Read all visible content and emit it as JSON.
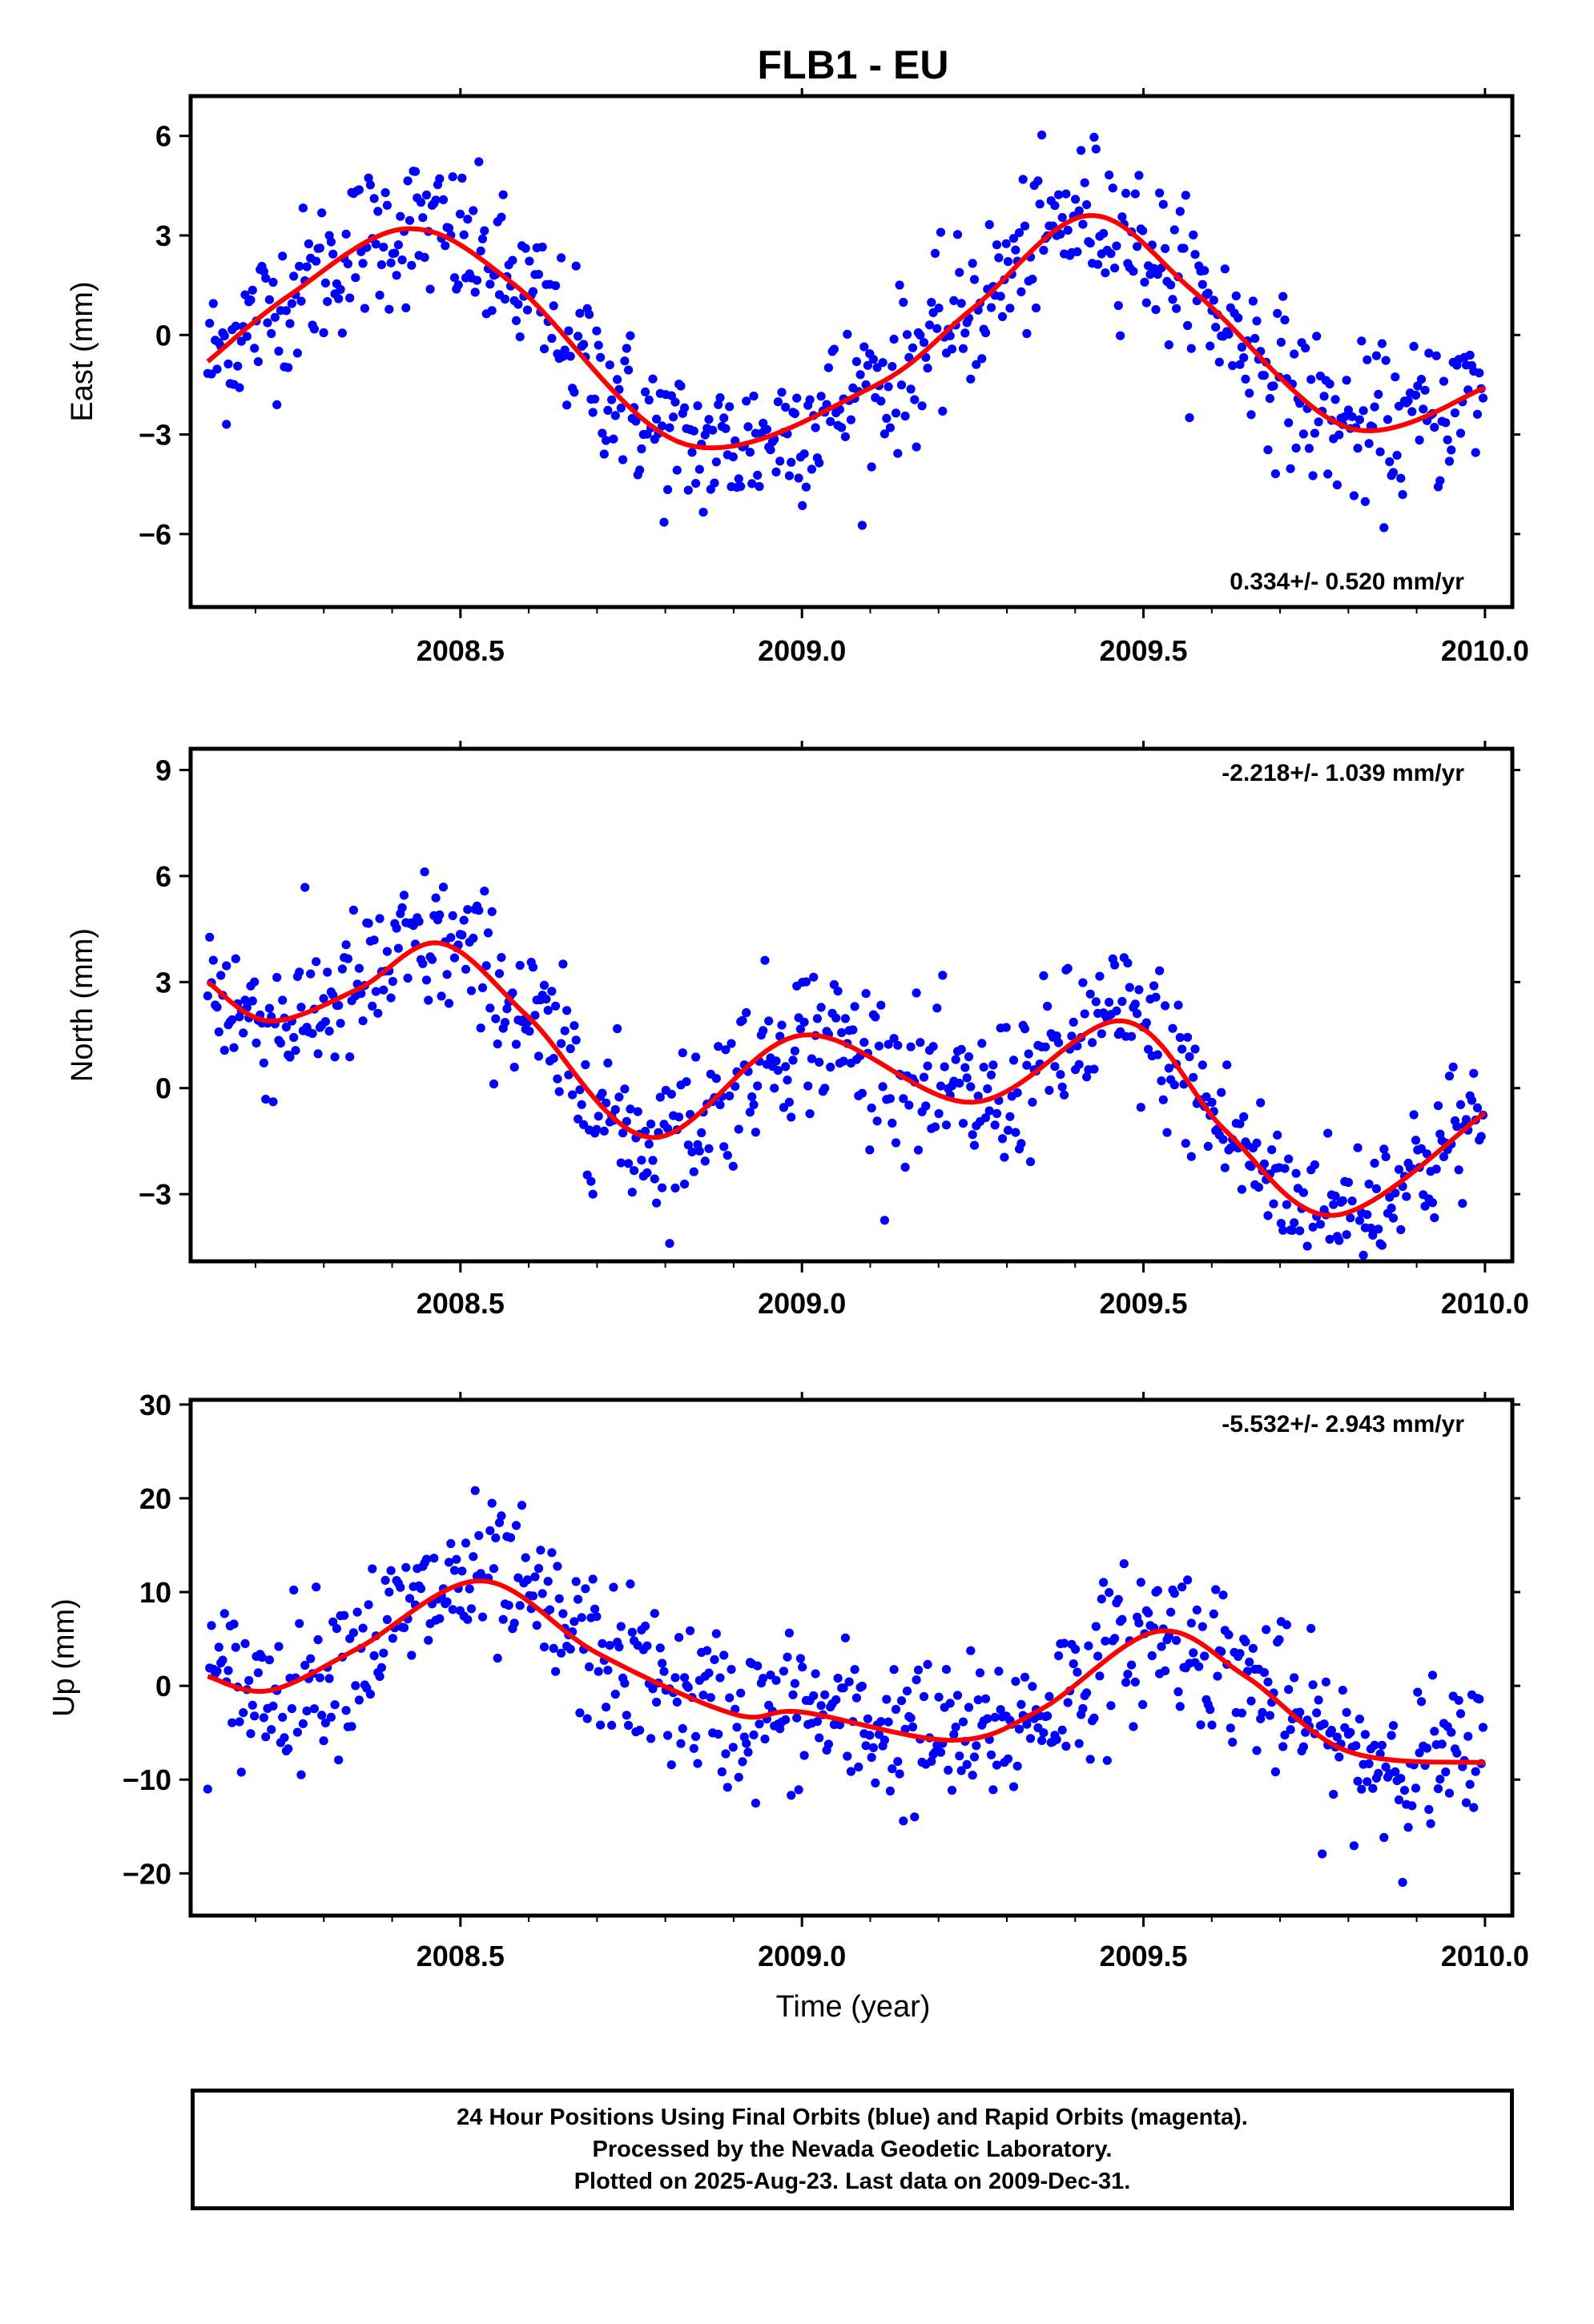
{
  "chart_data": {
    "type": "scatter",
    "title": "FLB1 - EU",
    "xlabel": "Time (year)",
    "xlim": [
      2008.105,
      2010.04
    ],
    "xticks": [
      2008.5,
      2009.0,
      2009.5,
      2010.0
    ],
    "xtick_labels": [
      "2008.5",
      "2009.0",
      "2009.5",
      "2010.0"
    ],
    "x_minor_step": 0.1,
    "panels": [
      {
        "name": "east",
        "ylabel": "East (mm)",
        "ylim": [
          -8.2,
          7.2
        ],
        "yticks": [
          6,
          3,
          0,
          -3,
          -6
        ],
        "ytick_labels": [
          "6",
          "3",
          "0",
          "−3",
          "−6"
        ],
        "rate": "0.334+/- 0.520 mm/yr",
        "rate_position": "bottom-right",
        "dot_color": "#0000ff",
        "fit_color": "#ff0000",
        "fit": {
          "x": [
            2008.13,
            2008.25,
            2008.42,
            2008.58,
            2008.83,
            2009.1,
            2009.25,
            2009.42,
            2009.58,
            2009.8,
            2010.0
          ],
          "y": [
            -0.8,
            1.2,
            3.2,
            1.5,
            -3.3,
            -1.6,
            0.8,
            3.6,
            1.2,
            -2.8,
            -1.6
          ]
        }
      },
      {
        "name": "north",
        "ylabel": "North (mm)",
        "ylim": [
          -4.9,
          9.6
        ],
        "yticks": [
          9,
          6,
          3,
          0,
          -3
        ],
        "ytick_labels": [
          "9",
          "6",
          "3",
          "0",
          "−3"
        ],
        "rate": "-2.218+/- 1.039 mm/yr",
        "rate_position": "top-right",
        "dot_color": "#0000ff",
        "fit_color": "#ff0000",
        "fit": {
          "x": [
            2008.13,
            2008.22,
            2008.35,
            2008.47,
            2008.6,
            2008.78,
            2009.0,
            2009.25,
            2009.47,
            2009.62,
            2009.78,
            2010.0
          ],
          "y": [
            3.0,
            1.9,
            2.8,
            4.1,
            2.0,
            -1.4,
            1.5,
            -0.4,
            1.9,
            -1.2,
            -3.6,
            -0.7
          ]
        }
      },
      {
        "name": "up",
        "ylabel": "Up (mm)",
        "ylim": [
          -24.5,
          30.5
        ],
        "yticks": [
          30,
          20,
          10,
          0,
          -10,
          -20
        ],
        "ytick_labels": [
          "30",
          "20",
          "10",
          "0",
          "−10",
          "−20"
        ],
        "rate": "-5.532+/- 2.943 mm/yr",
        "rate_position": "top-right",
        "dot_color": "#0000ff",
        "fit_color": "#ff0000",
        "fit": {
          "x": [
            2008.13,
            2008.22,
            2008.35,
            2008.53,
            2008.7,
            2008.9,
            2009.0,
            2009.22,
            2009.35,
            2009.52,
            2009.65,
            2009.8,
            2010.0
          ],
          "y": [
            1.0,
            -0.5,
            4.0,
            11.2,
            3.5,
            -3.0,
            -2.8,
            -5.8,
            -2.5,
            5.8,
            1.0,
            -7.0,
            -8.2
          ]
        }
      }
    ]
  },
  "footer": {
    "line1": "24 Hour Positions Using Final Orbits (blue) and Rapid Orbits (magenta).",
    "line2": "Processed by the Nevada Geodetic Laboratory.",
    "line3": "Plotted on 2025-Aug-23. Last data on 2009-Dec-31."
  }
}
